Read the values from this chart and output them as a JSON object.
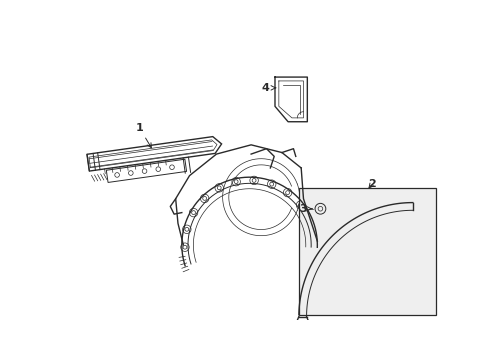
{
  "background_color": "#ffffff",
  "line_color": "#2a2a2a",
  "box_fill": "#f0f0f0",
  "fig_width": 4.9,
  "fig_height": 3.6,
  "dpi": 100,
  "lw_main": 1.0,
  "lw_med": 0.7,
  "lw_thin": 0.5
}
